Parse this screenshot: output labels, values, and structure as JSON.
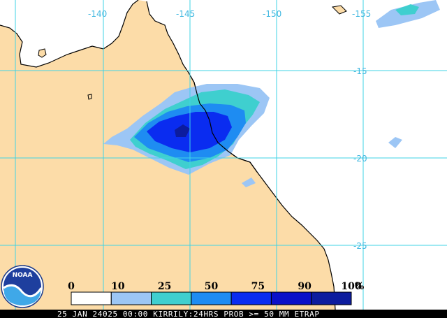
{
  "map": {
    "longitude_labels": [
      "-140",
      "-145",
      "-150",
      "-155"
    ],
    "latitude_labels": [
      "-15",
      "-20",
      "-25"
    ],
    "colors": {
      "land": "#fcdca8",
      "ocean": "#ffffff",
      "grid": "#3fd3e6",
      "coast": "#000000",
      "prob_10": "#9cc6f5",
      "prob_25": "#3fcfcf",
      "prob_50": "#1e8cf2",
      "prob_75": "#0a2cf0",
      "prob_90": "#0c1c9e"
    }
  },
  "legend": {
    "ticks": [
      "0",
      "10",
      "25",
      "50",
      "75",
      "90",
      "100"
    ],
    "unit": "%",
    "colors": [
      "#ffffff",
      "#9cc6f5",
      "#3fcfcf",
      "#1e8cf2",
      "#0a2cf0",
      "#0a10c8",
      "#0c1c9e"
    ]
  },
  "logo": {
    "text": "NOAA"
  },
  "footer": {
    "caption": "25 JAN 24025 00:00 KIRRILY:24HRS PROB >= 50 MM ETRAP"
  }
}
